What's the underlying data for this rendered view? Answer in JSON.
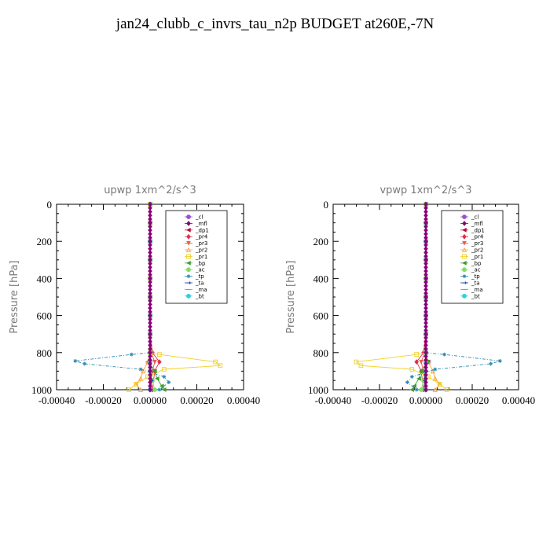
{
  "page": {
    "title": "jan24_clubb_c_invrs_tau_n2p  BUDGET at260E,-7N"
  },
  "chart_data": [
    {
      "type": "line",
      "title": "upwp   1xm^2/s^3",
      "xlabel": "",
      "ylabel": "Pressure [hPa]",
      "xlim": [
        -0.0004,
        0.0004
      ],
      "ylim": [
        1000,
        0
      ],
      "xticks": [
        "-0.00040",
        "-0.00020",
        "0.00000",
        "0.00020",
        "0.00040"
      ],
      "yticks": [
        "0",
        "200",
        "400",
        "600",
        "800",
        "1000"
      ],
      "legend": "top-right",
      "series": [
        {
          "name": "_cl",
          "color": "#9a4fd0",
          "marker": "circle",
          "x": [
            0,
            0,
            0,
            0,
            0,
            0,
            0,
            0,
            0,
            0,
            0,
            0
          ],
          "y": [
            0,
            100,
            200,
            300,
            400,
            500,
            600,
            700,
            800,
            850,
            900,
            1000
          ]
        },
        {
          "name": "_mfl",
          "color": "#8a0078",
          "marker": "diamond",
          "x": [
            0,
            0,
            0,
            0,
            0,
            0,
            0,
            0,
            0,
            0,
            0,
            0
          ],
          "y": [
            0,
            100,
            200,
            300,
            400,
            500,
            600,
            700,
            800,
            850,
            900,
            1000
          ]
        },
        {
          "name": "_dp1",
          "color": "#b0103a",
          "marker": "tri-left",
          "x": [
            0,
            0,
            0,
            0,
            0,
            0,
            0,
            0,
            2e-06,
            -1e-05,
            5e-06,
            3e-06
          ],
          "y": [
            0,
            100,
            200,
            300,
            400,
            500,
            600,
            700,
            800,
            850,
            900,
            1000
          ]
        },
        {
          "name": "_pr4",
          "color": "#e0304a",
          "marker": "diamond",
          "x": [
            0,
            0,
            0,
            0,
            0,
            0,
            0,
            0,
            1e-05,
            4e-05,
            2e-05,
            1e-05
          ],
          "y": [
            0,
            100,
            200,
            300,
            400,
            500,
            600,
            700,
            800,
            850,
            900,
            1000
          ]
        },
        {
          "name": "_pr3",
          "color": "#f05a4a",
          "marker": "tri-down",
          "x": [
            0,
            0,
            0,
            0,
            0,
            0,
            0,
            0,
            5e-06,
            2e-05,
            1e-05,
            4e-06
          ],
          "y": [
            0,
            100,
            200,
            300,
            400,
            500,
            600,
            700,
            800,
            850,
            900,
            1000
          ]
        },
        {
          "name": "_pr2",
          "color": "#f5a540",
          "marker": "tri-up",
          "x": [
            0,
            0,
            0,
            0,
            0,
            0,
            0,
            0,
            3e-06,
            -1e-05,
            -3e-05,
            -4e-05,
            -6e-05,
            -4e-05
          ],
          "y": [
            0,
            100,
            200,
            300,
            400,
            500,
            600,
            700,
            800,
            850,
            900,
            940,
            970,
            1000
          ]
        },
        {
          "name": "_pr1",
          "color": "#f0d020",
          "marker": "square",
          "x": [
            0,
            0,
            0,
            0,
            0,
            0,
            0,
            0,
            0,
            4e-05,
            0.00028,
            0.0003,
            6e-05,
            -1e-05,
            -6e-05,
            -9e-05
          ],
          "y": [
            0,
            100,
            200,
            300,
            400,
            500,
            600,
            700,
            800,
            810,
            850,
            870,
            890,
            930,
            970,
            1000
          ]
        },
        {
          "name": "_bp",
          "color": "#3aa02a",
          "marker": "tri-left",
          "x": [
            0,
            0,
            0,
            0,
            0,
            0,
            0,
            0,
            0,
            -5e-06,
            2e-05,
            3e-05,
            5e-05,
            6e-05
          ],
          "y": [
            0,
            100,
            200,
            300,
            400,
            500,
            600,
            700,
            800,
            850,
            900,
            940,
            980,
            1000
          ]
        },
        {
          "name": "_ac",
          "color": "#80e060",
          "marker": "circle",
          "x": [
            0,
            0,
            0,
            0,
            0,
            0,
            0,
            0,
            0,
            0,
            1e-05,
            2e-05
          ],
          "y": [
            0,
            100,
            200,
            300,
            400,
            500,
            600,
            700,
            800,
            850,
            950,
            1000
          ]
        },
        {
          "name": "_tp",
          "color": "#2a8ab0",
          "marker": "star",
          "x": [
            0,
            0,
            0,
            0,
            0,
            0,
            0,
            0,
            0,
            -8e-05,
            -0.00032,
            -0.00028,
            -4e-05,
            6e-05,
            8e-05,
            4e-05
          ],
          "y": [
            0,
            100,
            200,
            300,
            400,
            500,
            600,
            700,
            800,
            810,
            845,
            860,
            890,
            930,
            960,
            1000
          ]
        },
        {
          "name": "_ta",
          "color": "#1a40a0",
          "marker": "arrow",
          "x": [
            0,
            0,
            0,
            0,
            0,
            0,
            0,
            0,
            0,
            0,
            5e-06,
            3e-06
          ],
          "y": [
            0,
            100,
            200,
            300,
            400,
            500,
            600,
            700,
            800,
            850,
            950,
            1000
          ]
        },
        {
          "name": "_ma",
          "color": "#4aa8d0",
          "marker": "dash",
          "x": [
            0,
            0,
            0,
            0,
            0,
            0,
            0,
            0,
            0,
            0,
            0,
            0
          ],
          "y": [
            0,
            100,
            200,
            300,
            400,
            500,
            600,
            700,
            800,
            850,
            900,
            1000
          ]
        },
        {
          "name": "_bt",
          "color": "#30d0e0",
          "marker": "circle",
          "x": [
            0,
            0,
            0,
            0,
            0,
            0,
            0,
            0,
            0,
            0,
            0,
            0
          ],
          "y": [
            0,
            100,
            200,
            300,
            400,
            500,
            600,
            700,
            800,
            850,
            900,
            1000
          ]
        }
      ]
    },
    {
      "type": "line",
      "title": "vpwp   1xm^2/s^3",
      "xlabel": "",
      "ylabel": "Pressure [hPa]",
      "xlim": [
        -0.0004,
        0.0004
      ],
      "ylim": [
        1000,
        0
      ],
      "xticks": [
        "-0.00040",
        "-0.00020",
        "0.00000",
        "0.00020",
        "0.00040"
      ],
      "yticks": [
        "0",
        "200",
        "400",
        "600",
        "800",
        "1000"
      ],
      "legend": "top-right",
      "series": [
        {
          "name": "_cl",
          "color": "#9a4fd0",
          "marker": "circle",
          "x": [
            0,
            0,
            0,
            0,
            0,
            0,
            0,
            0,
            0,
            0,
            0,
            0
          ],
          "y": [
            0,
            100,
            200,
            300,
            400,
            500,
            600,
            700,
            800,
            850,
            900,
            1000
          ]
        },
        {
          "name": "_mfl",
          "color": "#8a0078",
          "marker": "diamond",
          "x": [
            0,
            0,
            0,
            0,
            0,
            0,
            0,
            0,
            0,
            0,
            0,
            0
          ],
          "y": [
            0,
            100,
            200,
            300,
            400,
            500,
            600,
            700,
            800,
            850,
            900,
            1000
          ]
        },
        {
          "name": "_dp1",
          "color": "#b0103a",
          "marker": "tri-left",
          "x": [
            0,
            0,
            0,
            0,
            0,
            0,
            0,
            0,
            -2e-06,
            1e-05,
            -5e-06,
            -3e-06
          ],
          "y": [
            0,
            100,
            200,
            300,
            400,
            500,
            600,
            700,
            800,
            850,
            900,
            1000
          ]
        },
        {
          "name": "_pr4",
          "color": "#e0304a",
          "marker": "diamond",
          "x": [
            0,
            0,
            0,
            0,
            0,
            0,
            0,
            0,
            -1e-05,
            -4e-05,
            -2e-05,
            -1e-05
          ],
          "y": [
            0,
            100,
            200,
            300,
            400,
            500,
            600,
            700,
            800,
            850,
            900,
            1000
          ]
        },
        {
          "name": "_pr3",
          "color": "#f05a4a",
          "marker": "tri-down",
          "x": [
            0,
            0,
            0,
            0,
            0,
            0,
            0,
            0,
            -5e-06,
            -2e-05,
            -1e-05,
            -4e-06
          ],
          "y": [
            0,
            100,
            200,
            300,
            400,
            500,
            600,
            700,
            800,
            850,
            900,
            1000
          ]
        },
        {
          "name": "_pr2",
          "color": "#f5a540",
          "marker": "tri-up",
          "x": [
            0,
            0,
            0,
            0,
            0,
            0,
            0,
            0,
            -3e-06,
            1e-05,
            3e-05,
            4e-05,
            6e-05,
            4e-05
          ],
          "y": [
            0,
            100,
            200,
            300,
            400,
            500,
            600,
            700,
            800,
            850,
            900,
            940,
            970,
            1000
          ]
        },
        {
          "name": "_pr1",
          "color": "#f0d020",
          "marker": "square",
          "x": [
            0,
            0,
            0,
            0,
            0,
            0,
            0,
            0,
            0,
            -4e-05,
            -0.0003,
            -0.00028,
            -6e-05,
            1e-05,
            6e-05,
            9e-05
          ],
          "y": [
            0,
            100,
            200,
            300,
            400,
            500,
            600,
            700,
            800,
            810,
            850,
            870,
            890,
            930,
            970,
            1000
          ]
        },
        {
          "name": "_bp",
          "color": "#3aa02a",
          "marker": "tri-left",
          "x": [
            0,
            0,
            0,
            0,
            0,
            0,
            0,
            0,
            0,
            5e-06,
            -2e-05,
            -3e-05,
            -5e-05,
            -6e-05
          ],
          "y": [
            0,
            100,
            200,
            300,
            400,
            500,
            600,
            700,
            800,
            850,
            900,
            940,
            980,
            1000
          ]
        },
        {
          "name": "_ac",
          "color": "#80e060",
          "marker": "circle",
          "x": [
            0,
            0,
            0,
            0,
            0,
            0,
            0,
            0,
            0,
            0,
            -1e-05,
            -2e-05
          ],
          "y": [
            0,
            100,
            200,
            300,
            400,
            500,
            600,
            700,
            800,
            850,
            950,
            1000
          ]
        },
        {
          "name": "_tp",
          "color": "#2a8ab0",
          "marker": "star",
          "x": [
            0,
            0,
            0,
            0,
            0,
            0,
            0,
            0,
            0,
            8e-05,
            0.00032,
            0.00028,
            4e-05,
            -6e-05,
            -8e-05,
            -4e-05
          ],
          "y": [
            0,
            100,
            200,
            300,
            400,
            500,
            600,
            700,
            800,
            810,
            845,
            860,
            890,
            930,
            960,
            1000
          ]
        },
        {
          "name": "_ta",
          "color": "#1a40a0",
          "marker": "arrow",
          "x": [
            0,
            0,
            0,
            0,
            0,
            0,
            0,
            0,
            0,
            0,
            -5e-06,
            -3e-06
          ],
          "y": [
            0,
            100,
            200,
            300,
            400,
            500,
            600,
            700,
            800,
            850,
            950,
            1000
          ]
        },
        {
          "name": "_ma",
          "color": "#4aa8d0",
          "marker": "dash",
          "x": [
            0,
            0,
            0,
            0,
            0,
            0,
            0,
            0,
            0,
            0,
            0,
            0
          ],
          "y": [
            0,
            100,
            200,
            300,
            400,
            500,
            600,
            700,
            800,
            850,
            900,
            1000
          ]
        },
        {
          "name": "_bt",
          "color": "#30d0e0",
          "marker": "circle",
          "x": [
            0,
            0,
            0,
            0,
            0,
            0,
            0,
            0,
            0,
            0,
            0,
            0
          ],
          "y": [
            0,
            100,
            200,
            300,
            400,
            500,
            600,
            700,
            800,
            850,
            900,
            1000
          ]
        }
      ]
    }
  ]
}
